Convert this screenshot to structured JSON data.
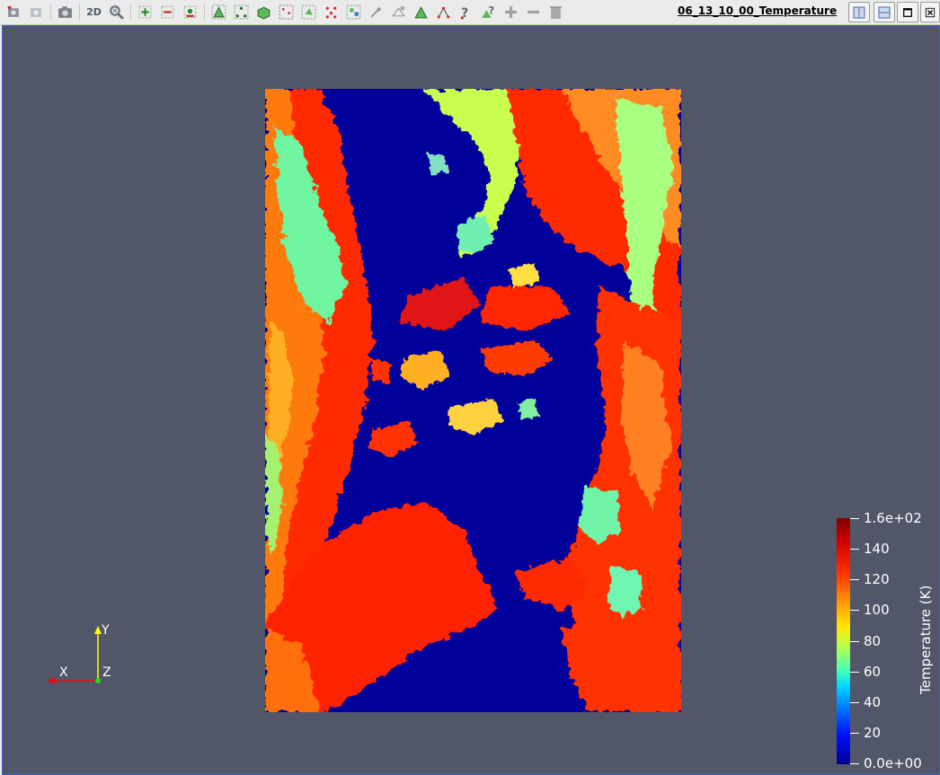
{
  "toolbar": {
    "buttons": [
      {
        "name": "reset-camera-icon"
      },
      {
        "name": "reset-camera-closest-icon"
      },
      {
        "name": "capture-screenshot-icon"
      },
      {
        "name": "toggle-2d-button",
        "label": "2D"
      },
      {
        "name": "zoom-to-data-icon"
      },
      {
        "name": "zoom-in-icon"
      },
      {
        "name": "zoom-out-icon"
      },
      {
        "name": "zoom-closest-icon"
      },
      {
        "name": "select-cells-on-icon"
      },
      {
        "name": "select-points-on-icon"
      },
      {
        "name": "select-cells-frustum-icon"
      },
      {
        "name": "select-points-frustum-icon"
      },
      {
        "name": "select-cells-polygon-icon"
      },
      {
        "name": "select-points-polygon-icon"
      },
      {
        "name": "select-blocks-icon"
      },
      {
        "name": "interactive-select-icon"
      },
      {
        "name": "hover-points-icon"
      },
      {
        "name": "hover-cells-icon"
      },
      {
        "name": "point-query-icon"
      },
      {
        "name": "cell-query-icon"
      },
      {
        "name": "grow-selection-icon"
      },
      {
        "name": "shrink-selection-icon"
      },
      {
        "name": "clear-selection-icon"
      }
    ],
    "view_title": "06_13_10_00_Temperature"
  },
  "colors": {
    "background": "#525669",
    "low": "#00009b",
    "high": "#800000"
  },
  "colorbar": {
    "title": "Temperature (K)",
    "range": [
      0,
      160
    ],
    "ticks": [
      {
        "label": "1.6e+02",
        "value": 160
      },
      {
        "label": "140",
        "value": 140
      },
      {
        "label": "120",
        "value": 120
      },
      {
        "label": "100",
        "value": 100
      },
      {
        "label": "80",
        "value": 80
      },
      {
        "label": "60",
        "value": 60
      },
      {
        "label": "40",
        "value": 40
      },
      {
        "label": "20",
        "value": 20
      },
      {
        "label": "0.0e+00",
        "value": 0
      }
    ]
  },
  "axes": {
    "x": "X",
    "y": "Y",
    "z": "Z"
  }
}
